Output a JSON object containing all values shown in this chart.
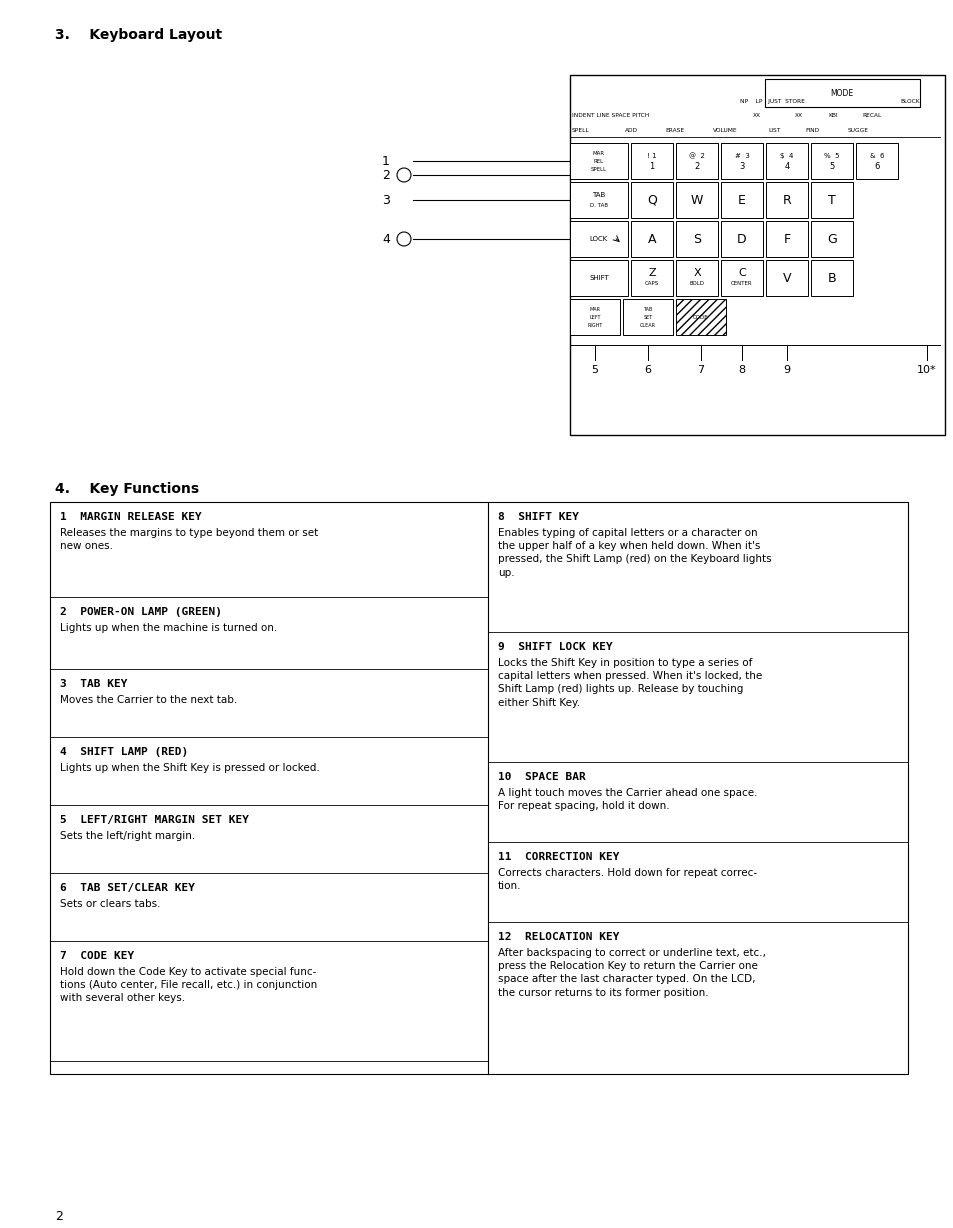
{
  "title_section": "3.    Keyboard Layout",
  "section4_title": "4.    Key Functions",
  "bg_color": "#ffffff",
  "text_color": "#000000",
  "left_cells": [
    {
      "num": "1",
      "title": "MARGIN RELEASE KEY",
      "body": "Releases the margins to type beyond them or set\nnew ones."
    },
    {
      "num": "2",
      "title": "POWER-ON LAMP (GREEN)",
      "body": "Lights up when the machine is turned on."
    },
    {
      "num": "3",
      "title": "TAB KEY",
      "body": "Moves the Carrier to the next tab."
    },
    {
      "num": "4",
      "title": "SHIFT LAMP (RED)",
      "body": "Lights up when the Shift Key is pressed or locked."
    },
    {
      "num": "5",
      "title": "LEFT/RIGHT MARGIN SET KEY",
      "body": "Sets the left/right margin."
    },
    {
      "num": "6",
      "title": "TAB SET/CLEAR KEY",
      "body": "Sets or clears tabs."
    },
    {
      "num": "7",
      "title": "CODE KEY",
      "body": "Hold down the Code Key to activate special func-\ntions (Auto center, File recall, etc.) in conjunction\nwith several other keys."
    }
  ],
  "right_cells": [
    {
      "num": "8",
      "title": "SHIFT KEY",
      "body": "Enables typing of capital letters or a character on\nthe upper half of a key when held down. When it's\npressed, the Shift Lamp (red) on the Keyboard lights\nup."
    },
    {
      "num": "9",
      "title": "SHIFT LOCK KEY",
      "body": "Locks the Shift Key in position to type a series of\ncapital letters when pressed. When it's locked, the\nShift Lamp (red) lights up. Release by touching\neither Shift Key."
    },
    {
      "num": "10",
      "title": "SPACE BAR",
      "body": "A light touch moves the Carrier ahead one space.\nFor repeat spacing, hold it down."
    },
    {
      "num": "11",
      "title": "CORRECTION KEY",
      "body": "Corrects characters. Hold down for repeat correc-\ntion."
    },
    {
      "num": "12",
      "title": "RELOCATION KEY",
      "body": "After backspacing to correct or underline text, etc.,\npress the Relocation Key to return the Carrier one\nspace after the last character typed. On the LCD,\nthe cursor returns to its former position."
    }
  ],
  "page_number": "2",
  "left_heights": [
    95,
    72,
    68,
    68,
    68,
    68,
    120
  ],
  "right_heights": [
    130,
    130,
    80,
    80,
    152
  ]
}
